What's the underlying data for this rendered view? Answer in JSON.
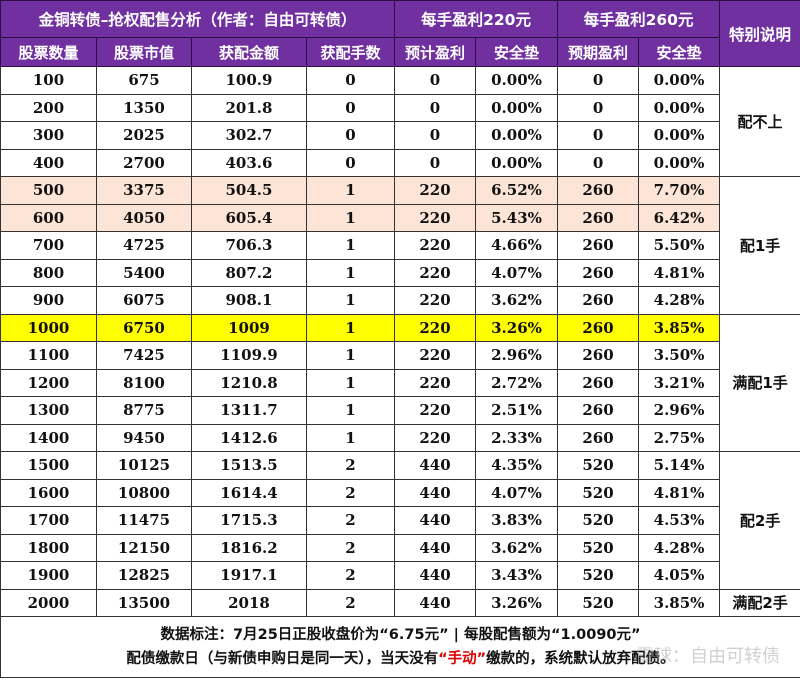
{
  "header": {
    "title": "金铜转债–抢权配售分析（作者：自由可转债）",
    "group_220": "每手盈利220元",
    "group_260": "每手盈利260元",
    "special_note": "特别说明",
    "columns": [
      "股票数量",
      "股票市值",
      "获配金额",
      "获配手数",
      "预计盈利",
      "安全垫",
      "预期盈利",
      "安全垫"
    ]
  },
  "colors": {
    "header_bg": "#7030a0",
    "highlight_peach": "#fce4d6",
    "highlight_yellow": "#ffff00",
    "emphasis_red": "#e00000"
  },
  "rows": [
    {
      "shares": "100",
      "market_value": "675",
      "allot_amount": "100.9",
      "lots": "0",
      "profit_220": "0",
      "cushion_220": "0.00%",
      "profit_260": "0",
      "cushion_260": "0.00%"
    },
    {
      "shares": "200",
      "market_value": "1350",
      "allot_amount": "201.8",
      "lots": "0",
      "profit_220": "0",
      "cushion_220": "0.00%",
      "profit_260": "0",
      "cushion_260": "0.00%"
    },
    {
      "shares": "300",
      "market_value": "2025",
      "allot_amount": "302.7",
      "lots": "0",
      "profit_220": "0",
      "cushion_220": "0.00%",
      "profit_260": "0",
      "cushion_260": "0.00%"
    },
    {
      "shares": "400",
      "market_value": "2700",
      "allot_amount": "403.6",
      "lots": "0",
      "profit_220": "0",
      "cushion_220": "0.00%",
      "profit_260": "0",
      "cushion_260": "0.00%"
    },
    {
      "shares": "500",
      "market_value": "3375",
      "allot_amount": "504.5",
      "lots": "1",
      "profit_220": "220",
      "cushion_220": "6.52%",
      "profit_260": "260",
      "cushion_260": "7.70%"
    },
    {
      "shares": "600",
      "market_value": "4050",
      "allot_amount": "605.4",
      "lots": "1",
      "profit_220": "220",
      "cushion_220": "5.43%",
      "profit_260": "260",
      "cushion_260": "6.42%"
    },
    {
      "shares": "700",
      "market_value": "4725",
      "allot_amount": "706.3",
      "lots": "1",
      "profit_220": "220",
      "cushion_220": "4.66%",
      "profit_260": "260",
      "cushion_260": "5.50%"
    },
    {
      "shares": "800",
      "market_value": "5400",
      "allot_amount": "807.2",
      "lots": "1",
      "profit_220": "220",
      "cushion_220": "4.07%",
      "profit_260": "260",
      "cushion_260": "4.81%"
    },
    {
      "shares": "900",
      "market_value": "6075",
      "allot_amount": "908.1",
      "lots": "1",
      "profit_220": "220",
      "cushion_220": "3.62%",
      "profit_260": "260",
      "cushion_260": "4.28%"
    },
    {
      "shares": "1000",
      "market_value": "6750",
      "allot_amount": "1009",
      "lots": "1",
      "profit_220": "220",
      "cushion_220": "3.26%",
      "profit_260": "260",
      "cushion_260": "3.85%"
    },
    {
      "shares": "1100",
      "market_value": "7425",
      "allot_amount": "1109.9",
      "lots": "1",
      "profit_220": "220",
      "cushion_220": "2.96%",
      "profit_260": "260",
      "cushion_260": "3.50%"
    },
    {
      "shares": "1200",
      "market_value": "8100",
      "allot_amount": "1210.8",
      "lots": "1",
      "profit_220": "220",
      "cushion_220": "2.72%",
      "profit_260": "260",
      "cushion_260": "3.21%"
    },
    {
      "shares": "1300",
      "market_value": "8775",
      "allot_amount": "1311.7",
      "lots": "1",
      "profit_220": "220",
      "cushion_220": "2.51%",
      "profit_260": "260",
      "cushion_260": "2.96%"
    },
    {
      "shares": "1400",
      "market_value": "9450",
      "allot_amount": "1412.6",
      "lots": "1",
      "profit_220": "220",
      "cushion_220": "2.33%",
      "profit_260": "260",
      "cushion_260": "2.75%"
    },
    {
      "shares": "1500",
      "market_value": "10125",
      "allot_amount": "1513.5",
      "lots": "2",
      "profit_220": "440",
      "cushion_220": "4.35%",
      "profit_260": "520",
      "cushion_260": "5.14%"
    },
    {
      "shares": "1600",
      "market_value": "10800",
      "allot_amount": "1614.4",
      "lots": "2",
      "profit_220": "440",
      "cushion_220": "4.07%",
      "profit_260": "520",
      "cushion_260": "4.81%"
    },
    {
      "shares": "1700",
      "market_value": "11475",
      "allot_amount": "1715.3",
      "lots": "2",
      "profit_220": "440",
      "cushion_220": "3.83%",
      "profit_260": "520",
      "cushion_260": "4.53%"
    },
    {
      "shares": "1800",
      "market_value": "12150",
      "allot_amount": "1816.2",
      "lots": "2",
      "profit_220": "440",
      "cushion_220": "3.62%",
      "profit_260": "520",
      "cushion_260": "4.28%"
    },
    {
      "shares": "1900",
      "market_value": "12825",
      "allot_amount": "1917.1",
      "lots": "2",
      "profit_220": "440",
      "cushion_220": "3.43%",
      "profit_260": "520",
      "cushion_260": "4.05%"
    },
    {
      "shares": "2000",
      "market_value": "13500",
      "allot_amount": "2018",
      "lots": "2",
      "profit_220": "440",
      "cushion_220": "3.26%",
      "profit_260": "520",
      "cushion_260": "3.85%"
    }
  ],
  "notes": {
    "none": "配不上",
    "one_lot": "配1手",
    "full_one_lot": "满配1手",
    "two_lots": "配2手",
    "full_two_lots": "满配2手"
  },
  "footer": {
    "line1": "数据标注：7月25日正股收盘价为“6.75元” | 每股配售额为“1.0090元”",
    "line2_pre": "配债缴款日（与新债申购日是同一天），当天没有",
    "line2_red": "“手动”",
    "line2_post": "缴款的，系统默认放弃配债。",
    "watermark": "雪球：自由可转债"
  }
}
